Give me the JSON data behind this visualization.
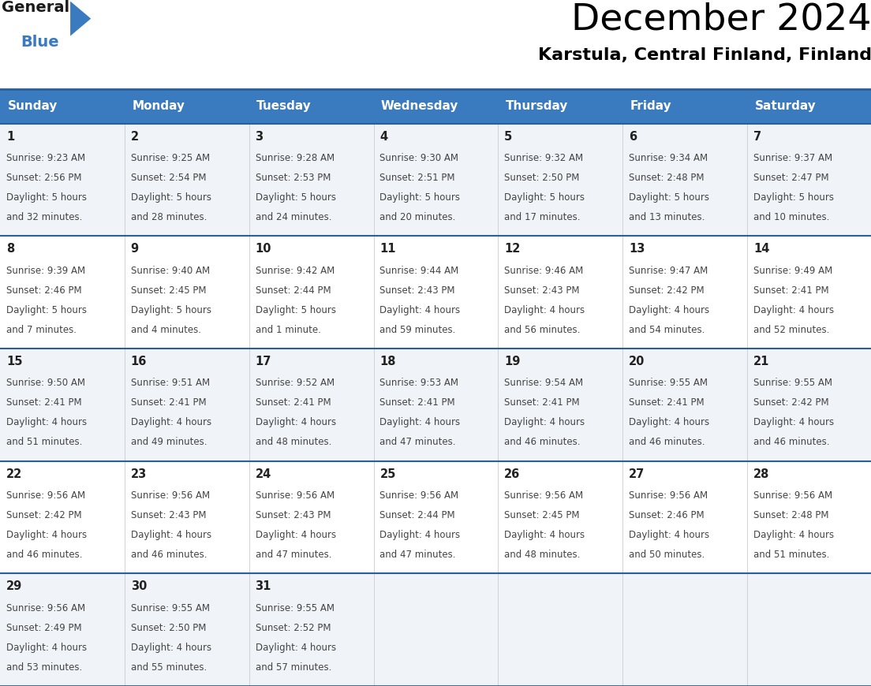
{
  "title": "December 2024",
  "subtitle": "Karstula, Central Finland, Finland",
  "days_of_week": [
    "Sunday",
    "Monday",
    "Tuesday",
    "Wednesday",
    "Thursday",
    "Friday",
    "Saturday"
  ],
  "header_bg": "#3a7abf",
  "header_text": "#ffffff",
  "row_bg_odd": "#f0f4f8",
  "row_bg_even": "#ffffff",
  "border_color": "#2a6099",
  "text_color": "#333333",
  "day_num_color": "#222222",
  "calendar": [
    [
      {
        "day": 1,
        "sunrise": "9:23 AM",
        "sunset": "2:56 PM",
        "daylight_h": "5 hours",
        "daylight_m": "32 minutes."
      },
      {
        "day": 2,
        "sunrise": "9:25 AM",
        "sunset": "2:54 PM",
        "daylight_h": "5 hours",
        "daylight_m": "28 minutes."
      },
      {
        "day": 3,
        "sunrise": "9:28 AM",
        "sunset": "2:53 PM",
        "daylight_h": "5 hours",
        "daylight_m": "24 minutes."
      },
      {
        "day": 4,
        "sunrise": "9:30 AM",
        "sunset": "2:51 PM",
        "daylight_h": "5 hours",
        "daylight_m": "20 minutes."
      },
      {
        "day": 5,
        "sunrise": "9:32 AM",
        "sunset": "2:50 PM",
        "daylight_h": "5 hours",
        "daylight_m": "17 minutes."
      },
      {
        "day": 6,
        "sunrise": "9:34 AM",
        "sunset": "2:48 PM",
        "daylight_h": "5 hours",
        "daylight_m": "13 minutes."
      },
      {
        "day": 7,
        "sunrise": "9:37 AM",
        "sunset": "2:47 PM",
        "daylight_h": "5 hours",
        "daylight_m": "10 minutes."
      }
    ],
    [
      {
        "day": 8,
        "sunrise": "9:39 AM",
        "sunset": "2:46 PM",
        "daylight_h": "5 hours",
        "daylight_m": "7 minutes."
      },
      {
        "day": 9,
        "sunrise": "9:40 AM",
        "sunset": "2:45 PM",
        "daylight_h": "5 hours",
        "daylight_m": "4 minutes."
      },
      {
        "day": 10,
        "sunrise": "9:42 AM",
        "sunset": "2:44 PM",
        "daylight_h": "5 hours",
        "daylight_m": "1 minute."
      },
      {
        "day": 11,
        "sunrise": "9:44 AM",
        "sunset": "2:43 PM",
        "daylight_h": "4 hours",
        "daylight_m": "59 minutes."
      },
      {
        "day": 12,
        "sunrise": "9:46 AM",
        "sunset": "2:43 PM",
        "daylight_h": "4 hours",
        "daylight_m": "56 minutes."
      },
      {
        "day": 13,
        "sunrise": "9:47 AM",
        "sunset": "2:42 PM",
        "daylight_h": "4 hours",
        "daylight_m": "54 minutes."
      },
      {
        "day": 14,
        "sunrise": "9:49 AM",
        "sunset": "2:41 PM",
        "daylight_h": "4 hours",
        "daylight_m": "52 minutes."
      }
    ],
    [
      {
        "day": 15,
        "sunrise": "9:50 AM",
        "sunset": "2:41 PM",
        "daylight_h": "4 hours",
        "daylight_m": "51 minutes."
      },
      {
        "day": 16,
        "sunrise": "9:51 AM",
        "sunset": "2:41 PM",
        "daylight_h": "4 hours",
        "daylight_m": "49 minutes."
      },
      {
        "day": 17,
        "sunrise": "9:52 AM",
        "sunset": "2:41 PM",
        "daylight_h": "4 hours",
        "daylight_m": "48 minutes."
      },
      {
        "day": 18,
        "sunrise": "9:53 AM",
        "sunset": "2:41 PM",
        "daylight_h": "4 hours",
        "daylight_m": "47 minutes."
      },
      {
        "day": 19,
        "sunrise": "9:54 AM",
        "sunset": "2:41 PM",
        "daylight_h": "4 hours",
        "daylight_m": "46 minutes."
      },
      {
        "day": 20,
        "sunrise": "9:55 AM",
        "sunset": "2:41 PM",
        "daylight_h": "4 hours",
        "daylight_m": "46 minutes."
      },
      {
        "day": 21,
        "sunrise": "9:55 AM",
        "sunset": "2:42 PM",
        "daylight_h": "4 hours",
        "daylight_m": "46 minutes."
      }
    ],
    [
      {
        "day": 22,
        "sunrise": "9:56 AM",
        "sunset": "2:42 PM",
        "daylight_h": "4 hours",
        "daylight_m": "46 minutes."
      },
      {
        "day": 23,
        "sunrise": "9:56 AM",
        "sunset": "2:43 PM",
        "daylight_h": "4 hours",
        "daylight_m": "46 minutes."
      },
      {
        "day": 24,
        "sunrise": "9:56 AM",
        "sunset": "2:43 PM",
        "daylight_h": "4 hours",
        "daylight_m": "47 minutes."
      },
      {
        "day": 25,
        "sunrise": "9:56 AM",
        "sunset": "2:44 PM",
        "daylight_h": "4 hours",
        "daylight_m": "47 minutes."
      },
      {
        "day": 26,
        "sunrise": "9:56 AM",
        "sunset": "2:45 PM",
        "daylight_h": "4 hours",
        "daylight_m": "48 minutes."
      },
      {
        "day": 27,
        "sunrise": "9:56 AM",
        "sunset": "2:46 PM",
        "daylight_h": "4 hours",
        "daylight_m": "50 minutes."
      },
      {
        "day": 28,
        "sunrise": "9:56 AM",
        "sunset": "2:48 PM",
        "daylight_h": "4 hours",
        "daylight_m": "51 minutes."
      }
    ],
    [
      {
        "day": 29,
        "sunrise": "9:56 AM",
        "sunset": "2:49 PM",
        "daylight_h": "4 hours",
        "daylight_m": "53 minutes."
      },
      {
        "day": 30,
        "sunrise": "9:55 AM",
        "sunset": "2:50 PM",
        "daylight_h": "4 hours",
        "daylight_m": "55 minutes."
      },
      {
        "day": 31,
        "sunrise": "9:55 AM",
        "sunset": "2:52 PM",
        "daylight_h": "4 hours",
        "daylight_m": "57 minutes."
      },
      null,
      null,
      null,
      null
    ]
  ],
  "logo_color_general": "#1a1a1a",
  "logo_color_blue": "#3a7abf",
  "logo_triangle_color": "#3a7abf"
}
